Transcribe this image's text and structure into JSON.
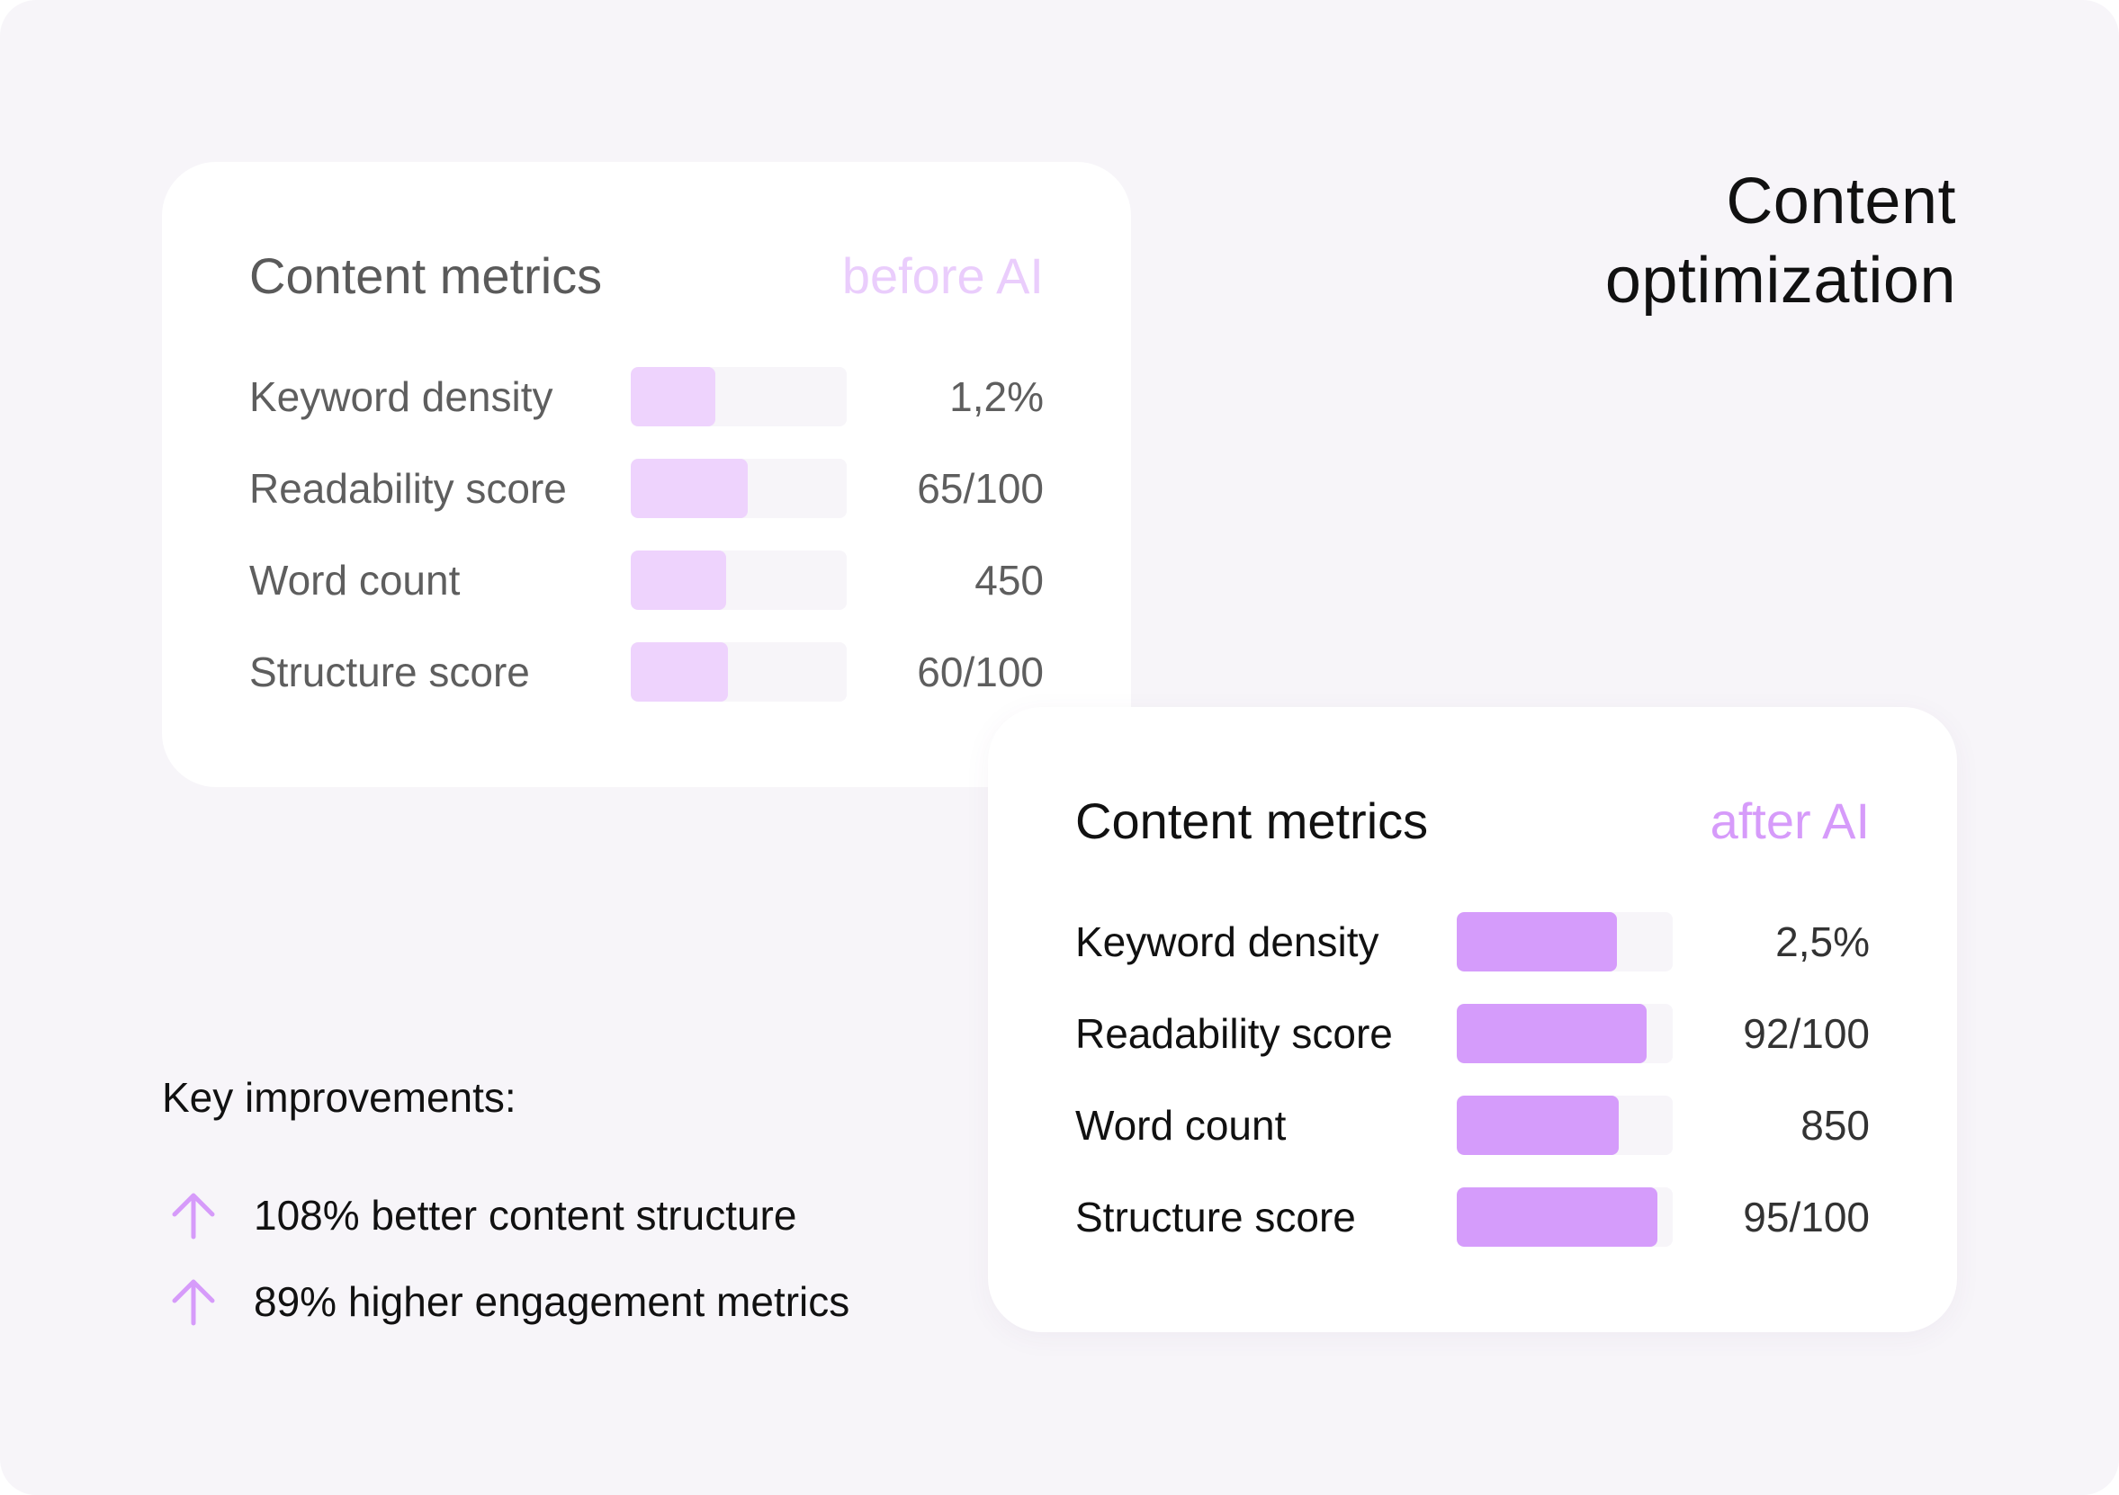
{
  "page": {
    "title_line1": "Content",
    "title_line2": "optimization"
  },
  "before_card": {
    "title": "Content metrics",
    "tag": "before AI",
    "metrics": [
      {
        "label": "Keyword density",
        "value": "1,2%",
        "bar_fraction": 0.39
      },
      {
        "label": "Readability score",
        "value": "65/100",
        "bar_fraction": 0.54
      },
      {
        "label": "Word count",
        "value": "450",
        "bar_fraction": 0.44
      },
      {
        "label": "Structure score",
        "value": "60/100",
        "bar_fraction": 0.45
      }
    ]
  },
  "after_card": {
    "title": "Content metrics",
    "tag": "after AI",
    "metrics": [
      {
        "label": "Keyword density",
        "value": "2,5%",
        "bar_fraction": 0.74
      },
      {
        "label": "Readability score",
        "value": "92/100",
        "bar_fraction": 0.88
      },
      {
        "label": "Word count",
        "value": "850",
        "bar_fraction": 0.75
      },
      {
        "label": "Structure score",
        "value": "95/100",
        "bar_fraction": 0.93
      }
    ]
  },
  "improvements": {
    "title": "Key improvements:",
    "items": [
      {
        "icon": "arrow-up-icon",
        "text": "108% better content structure"
      },
      {
        "icon": "arrow-up-icon",
        "text": "89% higher engagement metrics"
      }
    ]
  },
  "colors": {
    "background": "#f7f5f9",
    "card": "#ffffff",
    "before_fill": "#eed3fd",
    "after_fill": "#d59cfb",
    "accent": "#d69bfa"
  }
}
